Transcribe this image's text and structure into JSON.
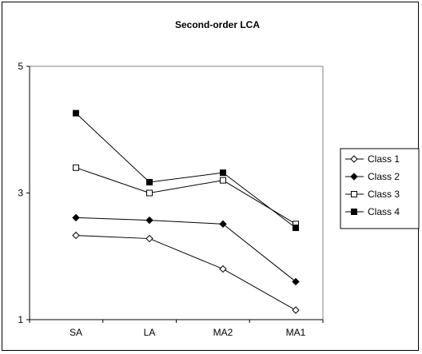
{
  "chart_data": {
    "type": "line",
    "title": "Second-order LCA",
    "xlabel": "",
    "ylabel": "",
    "categories": [
      "SA",
      "LA",
      "MA2",
      "MA1"
    ],
    "ylim": [
      1,
      5
    ],
    "yticks": [
      1,
      3,
      5
    ],
    "grid": false,
    "legend_position": "right",
    "series": [
      {
        "name": "Class 1",
        "marker": "diamond-open",
        "values": [
          2.33,
          2.28,
          1.8,
          1.15
        ]
      },
      {
        "name": "Class 2",
        "marker": "diamond-filled",
        "values": [
          2.61,
          2.57,
          2.51,
          1.6
        ]
      },
      {
        "name": "Class 3",
        "marker": "square-open",
        "values": [
          3.4,
          3.0,
          3.2,
          2.51
        ]
      },
      {
        "name": "Class 4",
        "marker": "square-filled",
        "values": [
          4.26,
          3.17,
          3.32,
          2.45
        ]
      }
    ],
    "colors": {
      "line": "#000000",
      "plot_area_border": "#808080"
    }
  }
}
